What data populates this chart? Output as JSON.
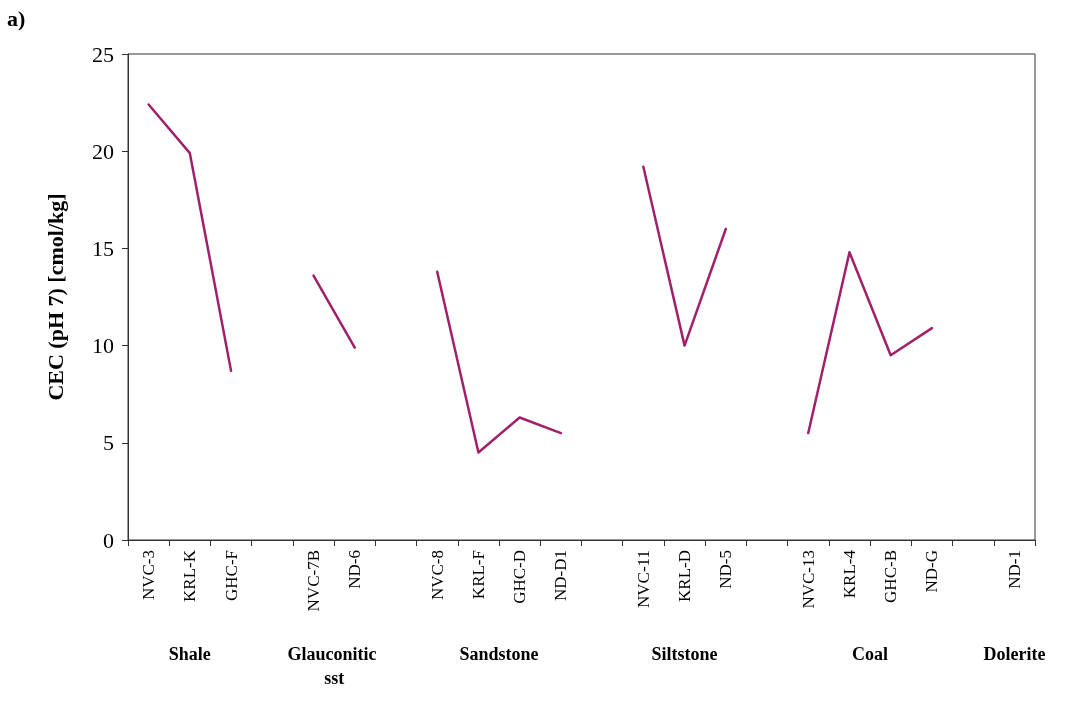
{
  "chart_data": {
    "type": "line",
    "title": "a)",
    "ylabel": "CEC (pH 7) [cmol/kg]",
    "categories": [
      "NVC-3",
      "KRL-K",
      "GHC-F",
      null,
      "NVC-7B",
      "ND-6",
      null,
      "NVC-8",
      "KRL-F",
      "GHC-D",
      "ND-D1",
      null,
      "NVC-11",
      "KRL-D",
      "ND-5",
      null,
      "NVC-13",
      "KRL-4",
      "GHC-B",
      "ND-G",
      null,
      "ND-1"
    ],
    "series": [
      {
        "color": "#a0206a",
        "values": [
          22.4,
          19.9,
          8.7,
          null,
          13.6,
          9.9,
          null,
          13.8,
          4.5,
          6.3,
          5.5,
          null,
          19.2,
          10.0,
          16.0,
          null,
          5.5,
          14.8,
          9.5,
          10.9,
          null,
          null
        ]
      }
    ],
    "ylim": [
      0,
      25
    ],
    "yticks": [
      0,
      5,
      10,
      15,
      20,
      25
    ],
    "grid": false,
    "marker": "none",
    "line_style": "solid",
    "annotations": [
      "Shale",
      "Glauconitic sst",
      "Sandstone",
      "Siltstone",
      "Coal",
      "Dolerite"
    ]
  }
}
